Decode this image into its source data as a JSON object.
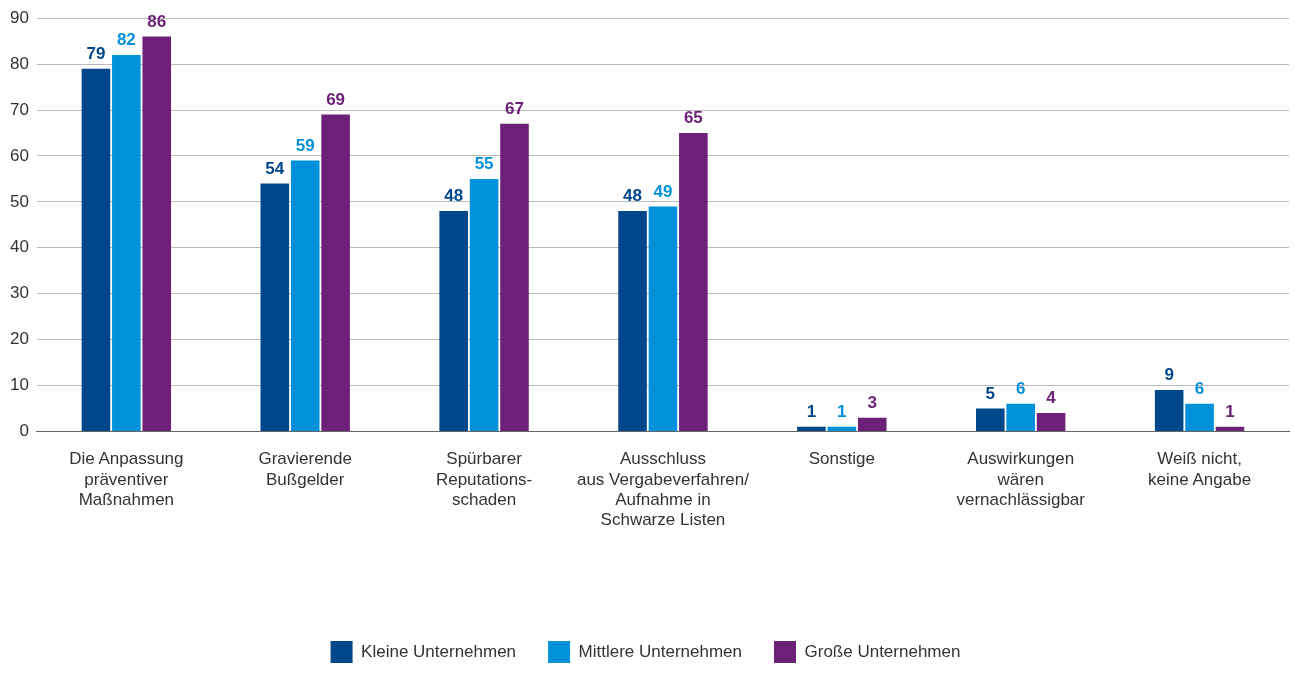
{
  "chart_data": {
    "type": "bar",
    "categories": [
      "Die Anpassung\npräventiver\nMaßnahmen",
      "Gravierende\nBußgelder",
      "Spürbarer\nReputations-\nschaden",
      "Ausschluss\naus Vergabeverfahren/\nAufnahme in\nSchwarze Listen",
      "Sonstige",
      "Auswirkungen\nwären\nvernachlässigbar",
      "Weiß nicht,\nkeine Angabe"
    ],
    "series": [
      {
        "name": "Kleine Unternehmen",
        "color": "#00468b",
        "values": [
          79,
          54,
          48,
          48,
          1,
          5,
          9
        ]
      },
      {
        "name": "Mittlere Unternehmen",
        "color": "#0091da",
        "values": [
          82,
          59,
          55,
          49,
          1,
          6,
          6
        ]
      },
      {
        "name": "Große Unternehmen",
        "color": "#6d2077",
        "values": [
          86,
          69,
          67,
          65,
          3,
          4,
          1
        ]
      }
    ],
    "ylim": [
      0,
      90
    ],
    "yticks": [
      0,
      10,
      20,
      30,
      40,
      50,
      60,
      70,
      80,
      90
    ],
    "grid": "y",
    "legend": "bottom",
    "data_labels": true
  }
}
